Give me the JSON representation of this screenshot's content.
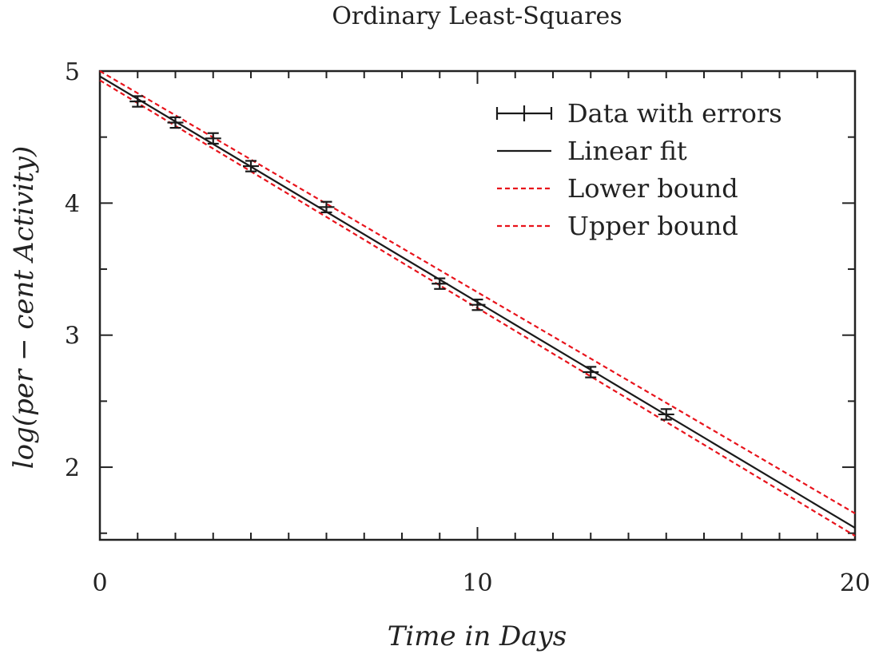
{
  "chart_data": {
    "type": "line",
    "title": "Ordinary Least-Squares",
    "xlabel": "Time in Days",
    "ylabel": "log(per − cent Activity)",
    "xlim": [
      0,
      20
    ],
    "ylim": [
      1.45,
      5.0
    ],
    "xticks": [
      0,
      10,
      20
    ],
    "yticks": [
      2,
      3,
      4,
      5
    ],
    "grid": false,
    "legend_position": "top-right",
    "series": [
      {
        "name": "Data with errors",
        "kind": "errorbar",
        "color": "#1a1a1a",
        "x": [
          1,
          2,
          3,
          4,
          6,
          9,
          10,
          13,
          15
        ],
        "y": [
          4.77,
          4.61,
          4.49,
          4.28,
          3.97,
          3.39,
          3.23,
          2.72,
          2.4
        ],
        "yerr": [
          0.04,
          0.04,
          0.04,
          0.04,
          0.04,
          0.04,
          0.04,
          0.04,
          0.04
        ]
      },
      {
        "name": "Linear fit",
        "kind": "line",
        "color": "#1a1a1a",
        "dash": "solid",
        "x": [
          0,
          20
        ],
        "y": [
          4.96,
          1.54
        ]
      },
      {
        "name": "Lower bound",
        "kind": "line",
        "color": "#e8131b",
        "dash": "dashed",
        "x": [
          0,
          20
        ],
        "y": [
          4.93,
          1.48
        ]
      },
      {
        "name": "Upper bound",
        "kind": "line",
        "color": "#e8131b",
        "dash": "dashed",
        "x": [
          0,
          20
        ],
        "y": [
          5.0,
          1.65
        ]
      }
    ]
  }
}
